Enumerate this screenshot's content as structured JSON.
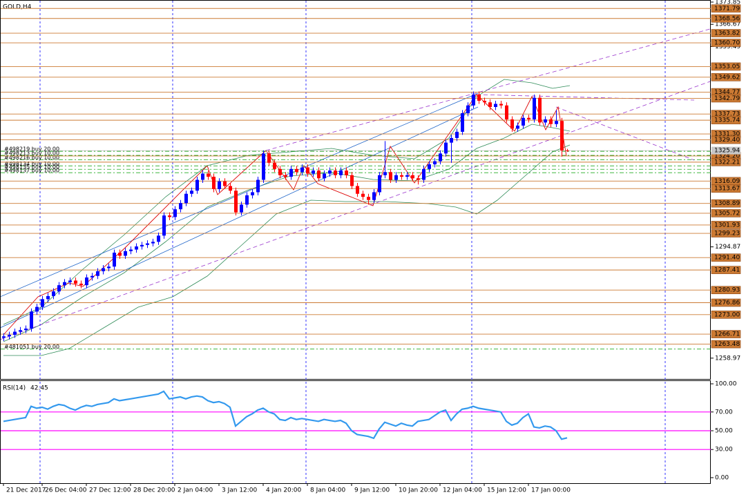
{
  "chart_data": [
    {
      "type": "candlestick",
      "title": "GOLD,H4",
      "categories": [
        "21 Dec 2017",
        null,
        null,
        null,
        null,
        null,
        null,
        "26 Dec 04:00",
        null,
        null,
        null,
        null,
        null,
        null,
        null,
        "27 Dec 12:00",
        null,
        null,
        null,
        null,
        null,
        null,
        null,
        "28 Dec 20:00",
        null,
        null,
        null,
        null,
        null,
        null,
        null,
        "2 Jan 04:00",
        null,
        null,
        null,
        null,
        null,
        null,
        null,
        "3 Jan 12:00",
        null,
        null,
        null,
        null,
        null,
        null,
        null,
        "4 Jan 20:00",
        null,
        null,
        null,
        null,
        null,
        null,
        null,
        "8 Jan 04:00",
        null,
        null,
        null,
        null,
        null,
        null,
        null,
        "9 Jan 12:00",
        null,
        null,
        null,
        null,
        null,
        null,
        null,
        "10 Jan 20:00",
        null,
        null,
        null,
        null,
        null,
        null,
        null,
        "12 Jan 04:00",
        null,
        null,
        null,
        null,
        null,
        null,
        null,
        "15 Jan 12:00",
        null,
        null,
        null,
        null,
        null,
        null,
        null,
        "17 Jan 00:00",
        null,
        null,
        null,
        null,
        null,
        null,
        null
      ],
      "open": [
        1265.5,
        1266.0,
        1266.5,
        1267.5,
        1268.0,
        1268.5,
        1274.0,
        1275.5,
        1278.0,
        1279.0,
        1280.5,
        1282.5,
        1283.5,
        1284.0,
        1283.0,
        1282.5,
        1285.0,
        1285.5,
        1287.0,
        1288.0,
        1288.5,
        1293.0,
        1292.0,
        1293.5,
        1294.0,
        1295.0,
        1295.5,
        1296.0,
        1296.5,
        1298.5,
        1305.0,
        1304.5,
        1307.0,
        1309.0,
        1312.0,
        1313.0,
        1316.5,
        1318.5,
        1317.5,
        1313.5,
        1316.0,
        1314.5,
        1313.0,
        1306.0,
        1308.5,
        1311.5,
        1312.5,
        1316.5,
        1325.0,
        1322.0,
        1320.0,
        1318.0,
        1317.5,
        1320.0,
        1319.0,
        1320.5,
        1318.5,
        1319.5,
        1317.0,
        1318.5,
        1319.5,
        1318.0,
        1319.5,
        1318.0,
        1314.5,
        1312.0,
        1311.0,
        1310.0,
        1312.5,
        1318.0,
        1319.0,
        1316.5,
        1318.0,
        1317.5,
        1318.0,
        1317.0,
        1316.5,
        1320.0,
        1321.5,
        1322.5,
        1325.0,
        1328.5,
        1330.0,
        1332.0,
        1338.0,
        1340.5,
        1344.0,
        1342.0,
        1341.5,
        1340.0,
        1341.0,
        1340.5,
        1336.0,
        1333.0,
        1334.0,
        1336.5,
        1336.0,
        1343.0,
        1335.0,
        1336.0,
        1334.5,
        1335.5,
        1326.0
      ],
      "high": [
        1267.0,
        1267.5,
        1268.5,
        1269.0,
        1269.5,
        1275.0,
        1276.5,
        1279.0,
        1280.0,
        1281.5,
        1283.5,
        1284.5,
        1285.0,
        1285.0,
        1284.0,
        1286.0,
        1286.5,
        1288.0,
        1289.0,
        1289.5,
        1294.0,
        1294.0,
        1294.5,
        1295.0,
        1296.0,
        1296.5,
        1297.0,
        1297.5,
        1299.5,
        1306.0,
        1306.0,
        1308.0,
        1310.0,
        1313.0,
        1314.0,
        1317.5,
        1319.5,
        1319.5,
        1318.5,
        1317.0,
        1317.0,
        1315.5,
        1314.0,
        1309.5,
        1312.5,
        1313.5,
        1317.5,
        1326.0,
        1326.0,
        1323.0,
        1321.0,
        1319.0,
        1321.0,
        1321.0,
        1321.5,
        1321.5,
        1320.5,
        1320.5,
        1319.5,
        1320.5,
        1320.5,
        1320.5,
        1320.5,
        1319.0,
        1315.5,
        1313.0,
        1312.0,
        1313.5,
        1319.0,
        1329.0,
        1320.0,
        1319.0,
        1319.0,
        1319.0,
        1319.0,
        1318.0,
        1321.0,
        1322.5,
        1323.5,
        1326.0,
        1329.5,
        1331.0,
        1333.0,
        1339.0,
        1341.5,
        1345.0,
        1345.0,
        1343.0,
        1342.5,
        1342.0,
        1342.0,
        1341.5,
        1337.0,
        1335.0,
        1337.5,
        1337.5,
        1344.0,
        1344.0,
        1337.0,
        1337.0,
        1339.0,
        1336.5,
        1326.5
      ],
      "low": [
        1264.5,
        1265.0,
        1265.5,
        1266.5,
        1267.0,
        1267.5,
        1273.0,
        1274.5,
        1277.0,
        1278.0,
        1279.5,
        1281.5,
        1282.5,
        1282.0,
        1281.5,
        1281.5,
        1284.0,
        1284.5,
        1286.0,
        1287.0,
        1287.5,
        1291.0,
        1291.0,
        1292.5,
        1293.0,
        1294.0,
        1294.5,
        1295.0,
        1295.5,
        1297.5,
        1303.5,
        1303.5,
        1306.0,
        1308.0,
        1311.0,
        1312.0,
        1315.5,
        1316.5,
        1312.5,
        1312.5,
        1313.5,
        1312.0,
        1305.0,
        1305.0,
        1307.5,
        1310.5,
        1311.5,
        1315.5,
        1321.0,
        1319.0,
        1317.0,
        1316.5,
        1316.5,
        1318.0,
        1318.0,
        1317.5,
        1317.5,
        1316.0,
        1316.0,
        1317.5,
        1317.0,
        1317.0,
        1317.0,
        1313.5,
        1311.0,
        1310.0,
        1308.5,
        1309.0,
        1311.5,
        1317.0,
        1315.5,
        1315.5,
        1316.5,
        1316.5,
        1316.0,
        1315.0,
        1315.5,
        1319.0,
        1320.5,
        1321.5,
        1324.0,
        1322.0,
        1329.0,
        1331.0,
        1337.0,
        1339.5,
        1341.0,
        1340.5,
        1339.0,
        1339.0,
        1339.5,
        1335.0,
        1332.0,
        1332.0,
        1333.0,
        1335.0,
        1335.0,
        1334.0,
        1334.0,
        1333.5,
        1333.5,
        1324.0,
        1325.5
      ],
      "close": [
        1266.0,
        1266.5,
        1267.5,
        1268.0,
        1268.5,
        1274.0,
        1275.5,
        1278.0,
        1279.0,
        1280.5,
        1282.5,
        1283.5,
        1284.0,
        1283.0,
        1282.5,
        1285.0,
        1285.5,
        1287.0,
        1288.0,
        1288.5,
        1293.0,
        1292.0,
        1293.5,
        1294.0,
        1295.0,
        1295.5,
        1296.0,
        1296.5,
        1298.5,
        1305.0,
        1304.5,
        1307.0,
        1309.0,
        1312.0,
        1313.0,
        1316.5,
        1318.5,
        1317.5,
        1313.5,
        1316.0,
        1314.5,
        1313.0,
        1306.0,
        1308.5,
        1311.5,
        1312.5,
        1316.5,
        1325.0,
        1322.0,
        1320.0,
        1318.0,
        1317.5,
        1320.0,
        1319.0,
        1320.5,
        1318.5,
        1319.5,
        1317.0,
        1318.5,
        1319.5,
        1318.0,
        1319.5,
        1318.0,
        1314.5,
        1312.0,
        1311.0,
        1310.0,
        1312.5,
        1318.0,
        1319.0,
        1316.5,
        1318.0,
        1317.5,
        1318.0,
        1317.0,
        1316.5,
        1320.0,
        1321.5,
        1322.5,
        1325.0,
        1328.5,
        1330.0,
        1332.0,
        1338.0,
        1340.5,
        1344.0,
        1342.0,
        1341.5,
        1340.0,
        1341.0,
        1340.5,
        1336.0,
        1333.0,
        1334.0,
        1336.5,
        1336.0,
        1343.0,
        1335.0,
        1336.0,
        1334.5,
        1335.5,
        1326.0,
        1325.94
      ],
      "up_color": "#0000ff",
      "down_color": "#ff0000",
      "ylim": [
        1252.25,
        1374.52
      ],
      "yticks": [
        1373.85,
        1366.67,
        1359.49,
        1294.87,
        1258.97
      ],
      "levels": [
        1371.79,
        1368.56,
        1363.82,
        {
          "value": 1360.7,
          "label": "1360.70"
        },
        1353.05,
        1349.62,
        1344.77,
        1342.79,
        1337.73,
        1335.74,
        {
          "value": 1331.3,
          "label": "1331.30"
        },
        {
          "value": 1329.4,
          "label": "1329.40"
        },
        {
          "value": 1324.2,
          "label": "1324.20"
        },
        1322.21,
        1316.09,
        1313.67,
        1308.89,
        1305.72,
        1301.93,
        1299.23,
        {
          "value": 1291.4,
          "label": "1291.40"
        },
        1287.41,
        1280.93,
        1276.86,
        {
          "value": 1273,
          "label": "1273.00"
        },
        1266.71,
        1263.48
      ],
      "level_color": "#cc7a33",
      "current_price": 1325.94,
      "orders": [
        {
          "label": "#498219 buy 20.00",
          "value": 1325.7
        },
        {
          "label": "#498213 buy 10.00",
          "value": 1324.4
        },
        {
          "label": "#498216 buy 10.00",
          "value": 1323.0
        },
        {
          "label": "#498134 buy 10.00",
          "value": 1321.0
        },
        {
          "label": "#498135 buy 10.00",
          "value": 1319.9
        },
        {
          "label": "#498137 buy 10.00",
          "value": 1318.8
        },
        {
          "label": "#481051 buy 20.00",
          "value": 1261.9
        }
      ],
      "order_color": "#22aa22"
    },
    {
      "type": "line",
      "name": "RSI(14)",
      "color": "#3399ee",
      "values": [
        60,
        61,
        62,
        63,
        64,
        76,
        74,
        75,
        73,
        76,
        78,
        77,
        74,
        72,
        75,
        77,
        76,
        78,
        79,
        80,
        84,
        82,
        83,
        84,
        85,
        86,
        87,
        88,
        89,
        92,
        84,
        85,
        86,
        84,
        86,
        87,
        86,
        82,
        80,
        81,
        79,
        75,
        55,
        60,
        65,
        68,
        72,
        74,
        70,
        68,
        62,
        61,
        64,
        62,
        63,
        62,
        61,
        60,
        62,
        61,
        60,
        61,
        58,
        50,
        46,
        45,
        44,
        42,
        52,
        59,
        57,
        55,
        58,
        56,
        55,
        60,
        61,
        62,
        66,
        70,
        72,
        61,
        68,
        73,
        74,
        76,
        74,
        73,
        72,
        71,
        70,
        60,
        56,
        58,
        64,
        68,
        54,
        53,
        55,
        54,
        50,
        41,
        42.45
      ],
      "ylim": [
        -5.9,
        103.7
      ],
      "yticks": [
        {
          "value": 100,
          "label": "100.00"
        },
        {
          "value": 70,
          "label": "70.00"
        },
        {
          "value": 50,
          "label": "50.00"
        },
        {
          "value": 30,
          "label": "30.00"
        },
        {
          "value": 0,
          "label": "0.00"
        }
      ],
      "levels": [
        70,
        50,
        30
      ],
      "level_color": "#ff00ff"
    }
  ]
}
